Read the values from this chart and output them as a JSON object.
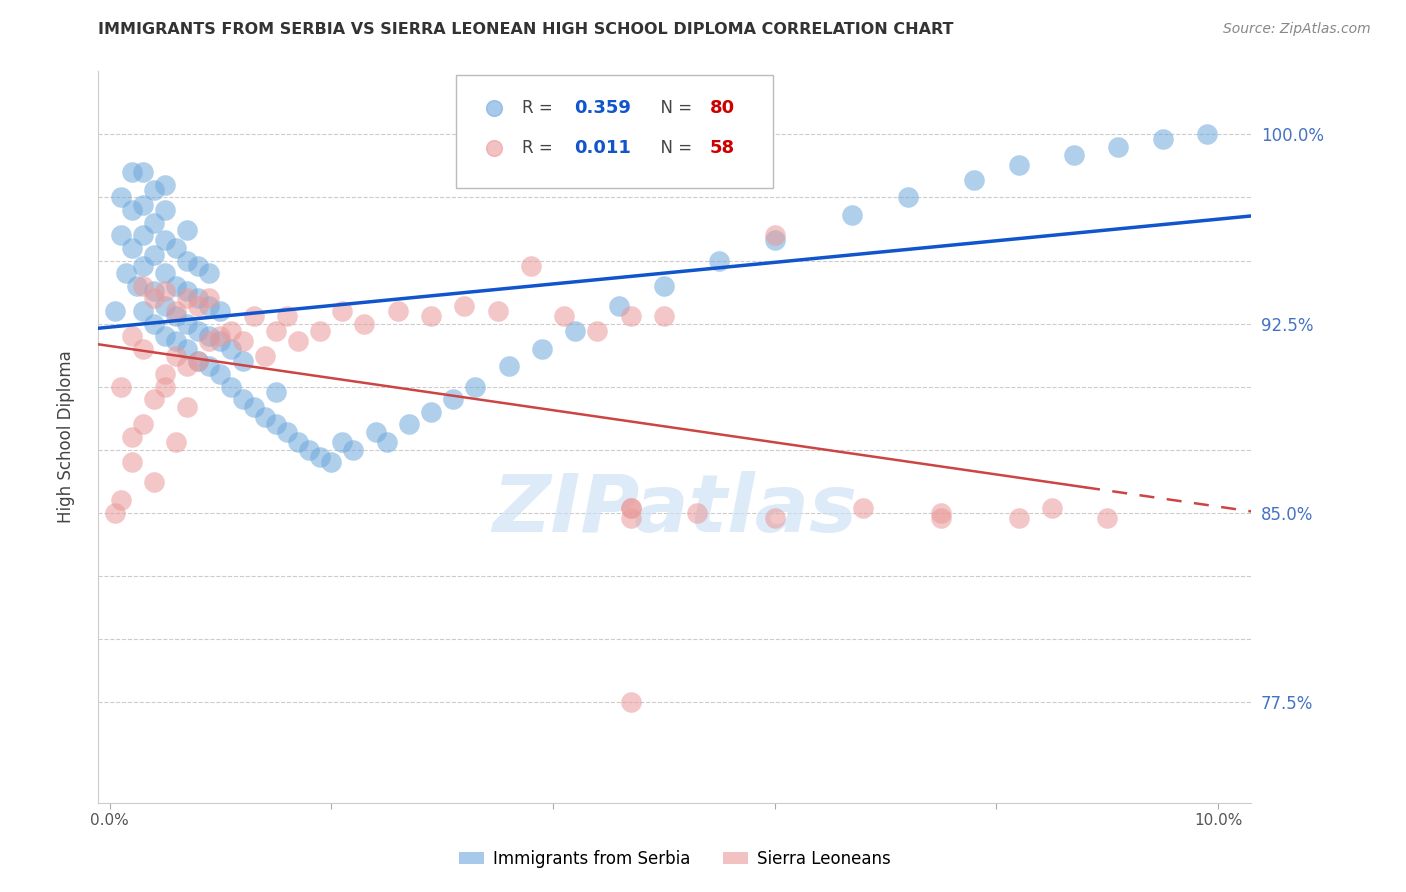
{
  "title": "IMMIGRANTS FROM SERBIA VS SIERRA LEONEAN HIGH SCHOOL DIPLOMA CORRELATION CHART",
  "source": "Source: ZipAtlas.com",
  "ylabel": "High School Diploma",
  "ymin": 0.735,
  "ymax": 1.025,
  "xmin": -0.001,
  "xmax": 0.103,
  "serbia_R": 0.359,
  "serbia_N": 80,
  "sierra_R": 0.011,
  "sierra_N": 58,
  "serbia_color": "#6fa8dc",
  "sierra_color": "#ea9999",
  "serbia_line_color": "#1155cc",
  "sierra_line_color": "#cc4444",
  "grid_color": "#cccccc",
  "background_color": "#ffffff",
  "right_tick_color": "#4472c4",
  "serbia_scatter_x": [
    0.0005,
    0.001,
    0.001,
    0.0015,
    0.002,
    0.002,
    0.002,
    0.0025,
    0.003,
    0.003,
    0.003,
    0.003,
    0.003,
    0.004,
    0.004,
    0.004,
    0.004,
    0.004,
    0.005,
    0.005,
    0.005,
    0.005,
    0.005,
    0.005,
    0.006,
    0.006,
    0.006,
    0.006,
    0.007,
    0.007,
    0.007,
    0.007,
    0.007,
    0.008,
    0.008,
    0.008,
    0.008,
    0.009,
    0.009,
    0.009,
    0.009,
    0.01,
    0.01,
    0.01,
    0.011,
    0.011,
    0.012,
    0.012,
    0.013,
    0.014,
    0.015,
    0.015,
    0.016,
    0.017,
    0.018,
    0.019,
    0.02,
    0.021,
    0.022,
    0.024,
    0.025,
    0.027,
    0.029,
    0.031,
    0.033,
    0.036,
    0.039,
    0.042,
    0.046,
    0.05,
    0.055,
    0.06,
    0.067,
    0.072,
    0.078,
    0.082,
    0.087,
    0.091,
    0.095,
    0.099
  ],
  "serbia_scatter_y": [
    0.93,
    0.96,
    0.975,
    0.945,
    0.955,
    0.97,
    0.985,
    0.94,
    0.93,
    0.948,
    0.96,
    0.972,
    0.985,
    0.925,
    0.938,
    0.952,
    0.965,
    0.978,
    0.92,
    0.932,
    0.945,
    0.958,
    0.97,
    0.98,
    0.918,
    0.928,
    0.94,
    0.955,
    0.915,
    0.925,
    0.938,
    0.95,
    0.962,
    0.91,
    0.922,
    0.935,
    0.948,
    0.908,
    0.92,
    0.932,
    0.945,
    0.905,
    0.918,
    0.93,
    0.9,
    0.915,
    0.895,
    0.91,
    0.892,
    0.888,
    0.885,
    0.898,
    0.882,
    0.878,
    0.875,
    0.872,
    0.87,
    0.878,
    0.875,
    0.882,
    0.878,
    0.885,
    0.89,
    0.895,
    0.9,
    0.908,
    0.915,
    0.922,
    0.932,
    0.94,
    0.95,
    0.958,
    0.968,
    0.975,
    0.982,
    0.988,
    0.992,
    0.995,
    0.998,
    1.0
  ],
  "sierra_scatter_x": [
    0.0005,
    0.001,
    0.002,
    0.002,
    0.003,
    0.003,
    0.004,
    0.004,
    0.005,
    0.005,
    0.006,
    0.006,
    0.007,
    0.007,
    0.008,
    0.008,
    0.009,
    0.009,
    0.01,
    0.011,
    0.012,
    0.013,
    0.014,
    0.015,
    0.016,
    0.017,
    0.019,
    0.021,
    0.023,
    0.026,
    0.029,
    0.032,
    0.035,
    0.038,
    0.041,
    0.044,
    0.047,
    0.05,
    0.001,
    0.002,
    0.003,
    0.004,
    0.005,
    0.006,
    0.007,
    0.047,
    0.06,
    0.047,
    0.075,
    0.082,
    0.047,
    0.053,
    0.06,
    0.068,
    0.075,
    0.085,
    0.09,
    0.047
  ],
  "sierra_scatter_y": [
    0.85,
    0.9,
    0.87,
    0.92,
    0.915,
    0.94,
    0.895,
    0.935,
    0.905,
    0.938,
    0.912,
    0.93,
    0.908,
    0.935,
    0.91,
    0.932,
    0.918,
    0.935,
    0.92,
    0.922,
    0.918,
    0.928,
    0.912,
    0.922,
    0.928,
    0.918,
    0.922,
    0.93,
    0.925,
    0.93,
    0.928,
    0.932,
    0.93,
    0.948,
    0.928,
    0.922,
    0.928,
    0.928,
    0.855,
    0.88,
    0.885,
    0.862,
    0.9,
    0.878,
    0.892,
    0.848,
    0.96,
    0.852,
    0.85,
    0.848,
    0.852,
    0.85,
    0.848,
    0.852,
    0.848,
    0.852,
    0.848,
    0.775
  ]
}
